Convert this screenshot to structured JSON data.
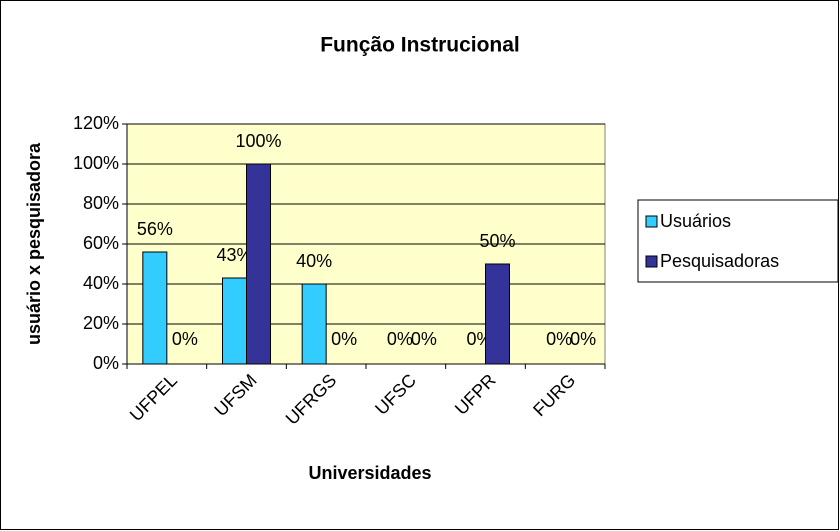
{
  "chart_data": {
    "type": "bar",
    "title": "Função Instrucional",
    "x_label": "Universidades",
    "y_label": "usuário x pesquisadora",
    "categories": [
      "UFPEL",
      "UFSM",
      "UFRGS",
      "UFSC",
      "UFPR",
      "FURG"
    ],
    "series": [
      {
        "name": "Usuários",
        "color": "#33ccff",
        "values": [
          56,
          43,
          40,
          0,
          0,
          0
        ],
        "value_labels": [
          "56%",
          "43%",
          "40%",
          "0%",
          "0%",
          "0%"
        ]
      },
      {
        "name": "Pesquisadoras",
        "color": "#333399",
        "values": [
          0,
          100,
          0,
          0,
          50,
          0
        ],
        "value_labels": [
          "0%",
          "100%",
          "0%",
          "0%",
          "50%",
          "0%"
        ]
      }
    ],
    "ylim": [
      0,
      120
    ],
    "yticks": [
      {
        "value": 0,
        "label": "0%"
      },
      {
        "value": 20,
        "label": "20%"
      },
      {
        "value": 40,
        "label": "40%"
      },
      {
        "value": 60,
        "label": "60%"
      },
      {
        "value": 80,
        "label": "80%"
      },
      {
        "value": 100,
        "label": "100%"
      },
      {
        "value": 120,
        "label": "120%"
      }
    ],
    "grid": true,
    "plot_background": "#ffffcc",
    "legend": "right"
  }
}
